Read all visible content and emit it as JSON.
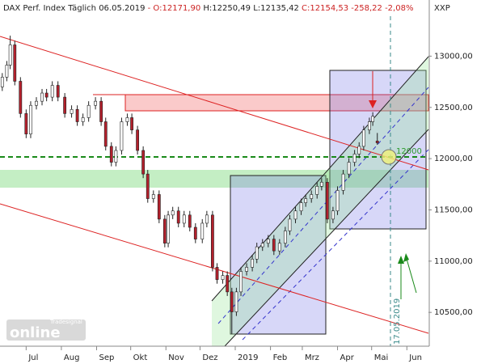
{
  "chart_data": {
    "type": "candlestick",
    "title": "DAX Perf. Index Täglich",
    "date": "06.05.2019",
    "header_parts": [
      "- O:12171,90",
      "H:12250,49",
      "L:12135,42",
      "C:12154,53 -258,22 -2,08%"
    ],
    "currency": "XXP",
    "annotations": [
      "12000",
      "17.05.2019"
    ],
    "watermark": [
      "Tradesignal",
      "online"
    ],
    "up_color": "#ffffff",
    "down_color": "#b3202c",
    "outline_color": "#222222",
    "x": [
      9,
      13,
      16,
      20,
      25,
      30,
      34,
      39,
      44,
      48,
      53,
      58,
      64,
      70,
      75,
      80,
      85,
      91,
      96,
      100,
      105,
      109,
      114,
      119,
      123,
      128,
      133,
      137,
      142,
      147,
      152,
      155,
      159,
      164,
      169,
      174,
      179,
      185,
      189,
      194,
      198,
      203,
      207,
      211,
      215,
      219,
      224,
      229,
      233,
      238,
      243,
      248,
      253,
      258,
      262,
      267,
      272,
      276,
      281,
      286,
      290,
      295,
      300,
      304,
      309,
      314,
      319,
      323,
      327,
      332,
      335,
      339
    ],
    "open": [
      12700,
      12795,
      12913,
      13110,
      12755,
      12440,
      12240,
      12520,
      12560,
      12640,
      12600,
      12715,
      12600,
      12440,
      12480,
      12360,
      12400,
      12520,
      12560,
      12360,
      12120,
      11965,
      12080,
      12360,
      12400,
      12280,
      12080,
      11850,
      11610,
      11650,
      11410,
      11175,
      11450,
      11490,
      11370,
      11450,
      11330,
      11215,
      11370,
      11450,
      10940,
      10820,
      10860,
      10700,
      10505,
      10700,
      10900,
      10940,
      11020,
      11140,
      11175,
      11215,
      11100,
      11175,
      11295,
      11410,
      11490,
      11570,
      11610,
      11650,
      11730,
      11770,
      11410,
      11490,
      11690,
      11850,
      11965,
      12045,
      12120,
      12280,
      12360,
      12171.9
    ],
    "high": [
      12835,
      12953,
      13200,
      13150,
      12795,
      12480,
      12560,
      12600,
      12680,
      12680,
      12755,
      12755,
      12640,
      12520,
      12520,
      12440,
      12560,
      12600,
      12600,
      12400,
      12160,
      12120,
      12400,
      12440,
      12440,
      12320,
      12120,
      11890,
      11690,
      11690,
      11450,
      11490,
      11530,
      11530,
      11490,
      11490,
      11370,
      11410,
      11490,
      11490,
      10980,
      10900,
      10900,
      10740,
      10740,
      10940,
      10980,
      11060,
      11180,
      11215,
      11255,
      11255,
      11215,
      11335,
      11450,
      11530,
      11610,
      11650,
      11690,
      11770,
      11810,
      11810,
      11530,
      11730,
      11890,
      12005,
      12085,
      12160,
      12320,
      12400,
      12453,
      12250.49
    ],
    "low": [
      12660,
      12755,
      12873,
      12715,
      12400,
      12200,
      12200,
      12480,
      12520,
      12560,
      12560,
      12560,
      12400,
      12400,
      12320,
      12320,
      12360,
      12480,
      12320,
      12080,
      11925,
      11925,
      12040,
      12320,
      12240,
      12040,
      11810,
      11570,
      11570,
      11370,
      11135,
      11135,
      11410,
      11330,
      11330,
      11290,
      11175,
      11175,
      11330,
      10900,
      10780,
      10780,
      10660,
      10290,
      10465,
      10660,
      10860,
      10900,
      10980,
      11100,
      11135,
      11060,
      11060,
      11135,
      11255,
      11370,
      11450,
      11530,
      11570,
      11610,
      11690,
      11370,
      11370,
      11450,
      11650,
      11810,
      11925,
      12005,
      12080,
      12240,
      12320,
      12135.42
    ],
    "close": [
      12795,
      12913,
      13110,
      12755,
      12440,
      12240,
      12520,
      12560,
      12640,
      12600,
      12715,
      12600,
      12440,
      12480,
      12360,
      12400,
      12520,
      12560,
      12360,
      12120,
      11965,
      12080,
      12360,
      12400,
      12280,
      12080,
      11850,
      11610,
      11650,
      11410,
      11175,
      11450,
      11490,
      11370,
      11450,
      11330,
      11215,
      11370,
      11450,
      10940,
      10820,
      10860,
      10700,
      10505,
      10700,
      10900,
      10940,
      11020,
      11140,
      11175,
      11215,
      11100,
      11175,
      11295,
      11410,
      11490,
      11570,
      11610,
      11650,
      11730,
      11770,
      11410,
      11490,
      11690,
      11850,
      11965,
      12045,
      12120,
      12280,
      12360,
      12413,
      12154.53
    ],
    "xlim": [
      7,
      384
    ],
    "xticks": [
      {
        "value": 30,
        "label": "Jul"
      },
      {
        "value": 61,
        "label": "Aug"
      },
      {
        "value": 92,
        "label": "Sep"
      },
      {
        "value": 122,
        "label": "Okt"
      },
      {
        "value": 153,
        "label": "Nov"
      },
      {
        "value": 183,
        "label": "Dez"
      },
      {
        "value": 214,
        "label": "2019"
      },
      {
        "value": 245,
        "label": "Feb"
      },
      {
        "value": 273,
        "label": "Mrz"
      },
      {
        "value": 304,
        "label": "Apr"
      },
      {
        "value": 334,
        "label": "Mai"
      },
      {
        "value": 365,
        "label": "Jun"
      }
    ],
    "ylim": [
      10170,
      13390
    ],
    "yticks": [
      {
        "value": 10500,
        "label": "10500,00"
      },
      {
        "value": 11000,
        "label": "11000,00"
      },
      {
        "value": 11500,
        "label": "11500,00"
      },
      {
        "value": 12000,
        "label": "12000,00"
      },
      {
        "value": 12500,
        "label": "12500,00"
      },
      {
        "value": 13000,
        "label": "13000,00"
      }
    ]
  }
}
